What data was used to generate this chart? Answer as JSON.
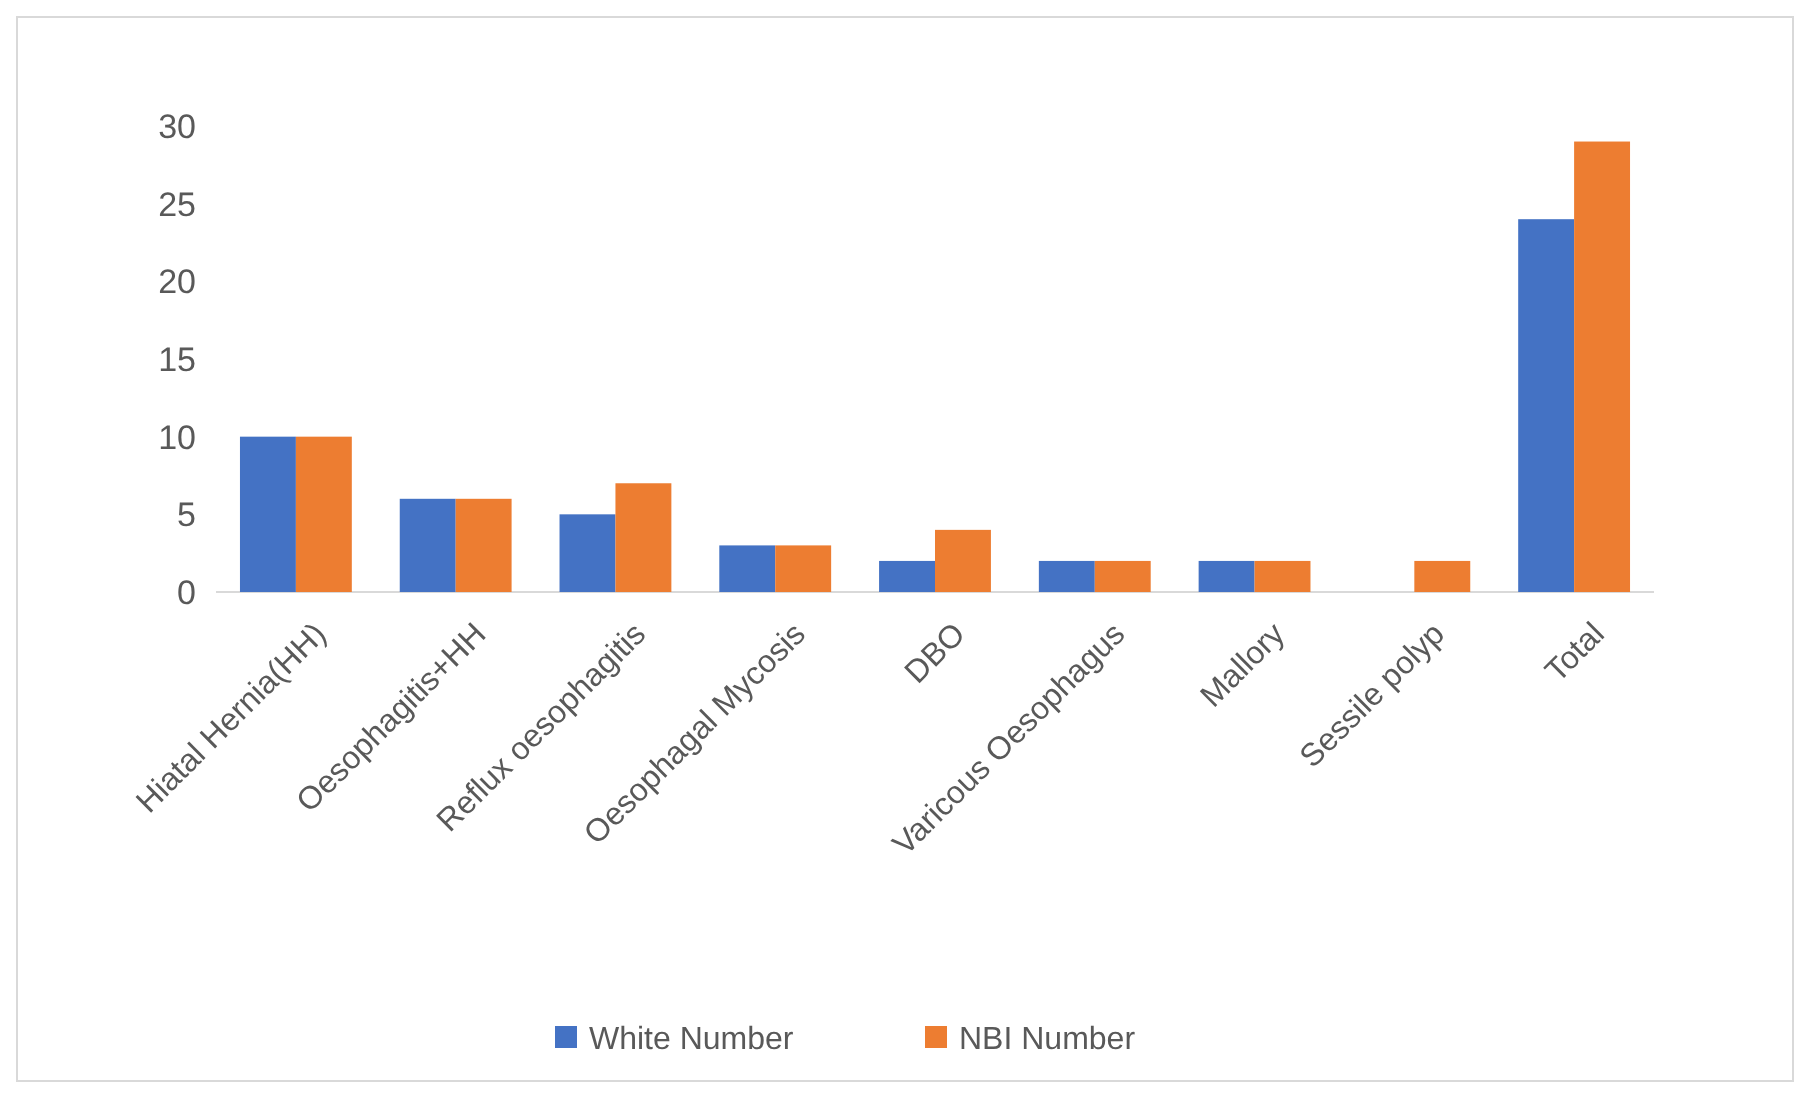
{
  "chart_data": {
    "type": "bar",
    "categories": [
      "Hiatal Hernia(HH)",
      "Oesophagitis+HH",
      "Reflux oesophagitis",
      "Oesophagal Mycosis",
      "DBO",
      "Varicous Oesophagus",
      "Mallory",
      "Sessile polyp",
      "Total"
    ],
    "series": [
      {
        "name": "White Number",
        "color": "#4472c4",
        "values": [
          10,
          6,
          5,
          3,
          2,
          2,
          2,
          0,
          24
        ]
      },
      {
        "name": "NBI Number",
        "color": "#ed7d31",
        "values": [
          10,
          6,
          7,
          3,
          4,
          2,
          2,
          2,
          29
        ]
      }
    ],
    "ylim": [
      0,
      30
    ],
    "yticks": [
      0,
      5,
      10,
      15,
      20,
      25,
      30
    ],
    "grid": false,
    "legend": "bottom"
  }
}
